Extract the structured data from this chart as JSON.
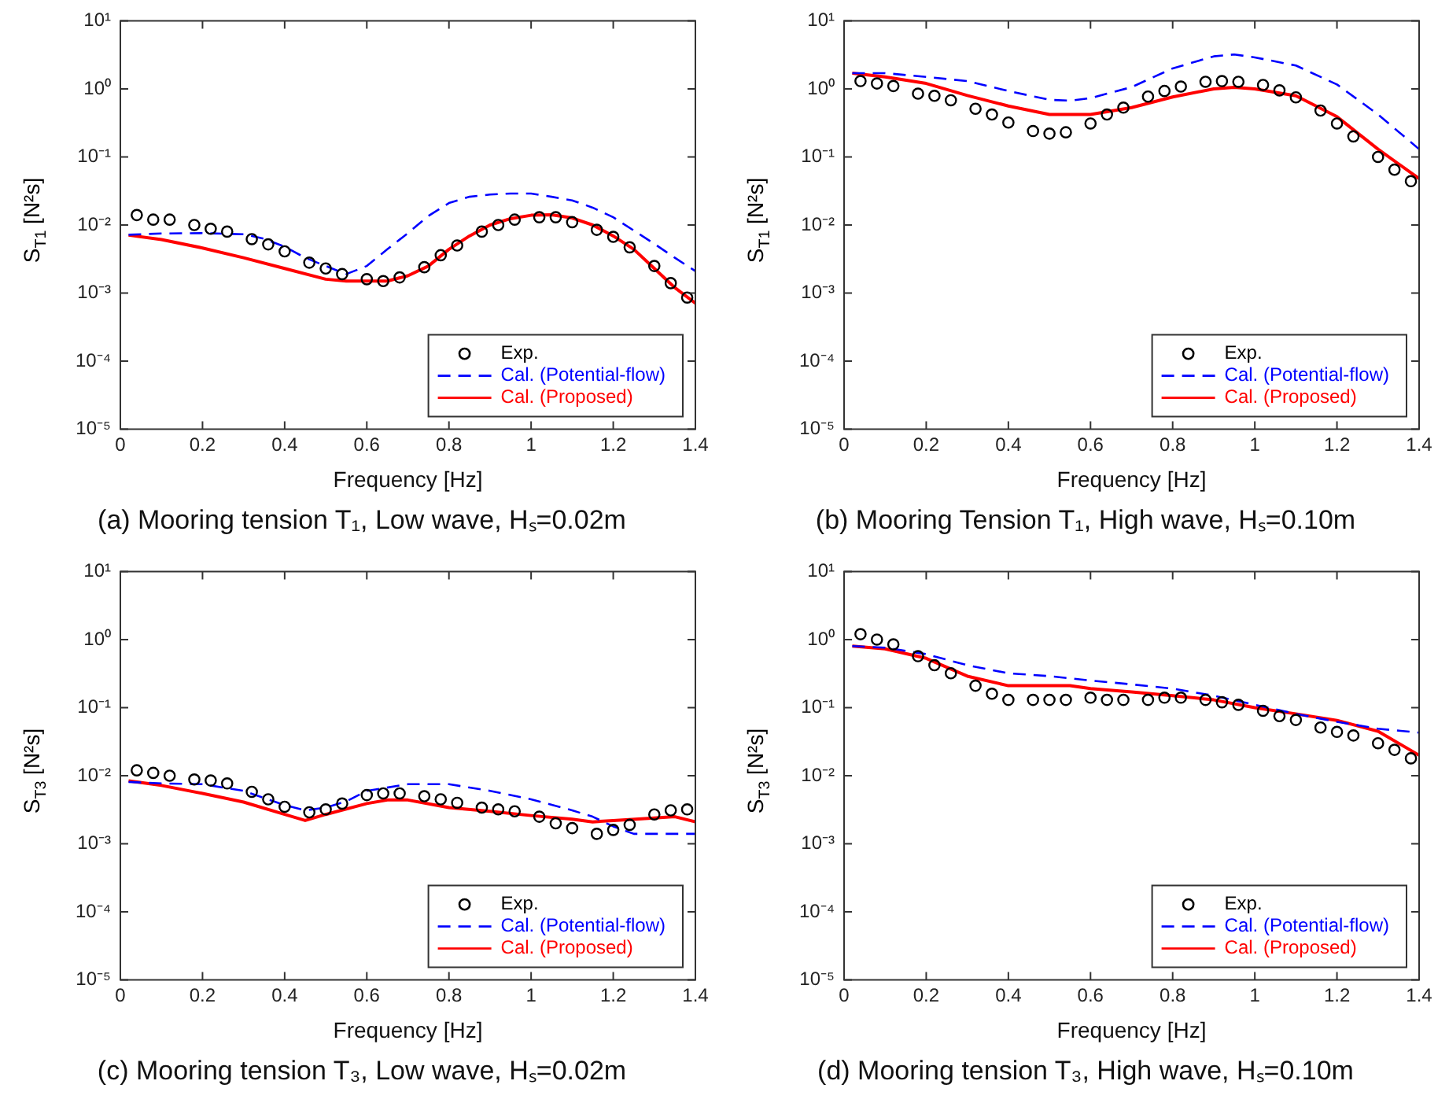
{
  "chart_data": [
    {
      "type": "line",
      "title": "(a) Mooring tension T₁, Low wave, Hₛ=0.02m",
      "xlabel": "Frequency [Hz]",
      "ylabel": "S$_{T1}$ [N²s]",
      "log": "y",
      "legend": "bottom right",
      "xlim": [
        0,
        1.4
      ],
      "xticks": [
        0,
        0.2,
        0.4,
        0.6,
        0.8,
        1,
        1.2,
        1.4
      ],
      "ylim": [
        1e-05,
        10
      ],
      "yticks": [
        {
          "value": 10,
          "label": "10¹"
        },
        {
          "value": 1,
          "label": "10⁰"
        },
        {
          "value": 0.1,
          "label": "10⁻¹"
        },
        {
          "value": 0.01,
          "label": "10⁻²"
        },
        {
          "value": 0.001,
          "label": "10⁻³"
        },
        {
          "value": 0.0001,
          "label": "10⁻⁴"
        },
        {
          "value": 1e-05,
          "label": "10⁻⁵"
        }
      ],
      "series": [
        {
          "name": "Exp.",
          "type": "scatter",
          "marker": "circle",
          "color": "#000000",
          "x": [
            0.04,
            0.08,
            0.12,
            0.18,
            0.22,
            0.26,
            0.32,
            0.36,
            0.4,
            0.46,
            0.5,
            0.54,
            0.6,
            0.64,
            0.68,
            0.74,
            0.78,
            0.82,
            0.88,
            0.92,
            0.96,
            1.02,
            1.06,
            1.1,
            1.16,
            1.2,
            1.24,
            1.3,
            1.34,
            1.38
          ],
          "values": [
            0.014,
            0.012,
            0.012,
            0.01,
            0.0088,
            0.008,
            0.0062,
            0.0052,
            0.0041,
            0.0028,
            0.0023,
            0.0019,
            0.0016,
            0.0015,
            0.0017,
            0.0024,
            0.0036,
            0.005,
            0.008,
            0.01,
            0.012,
            0.013,
            0.013,
            0.011,
            0.0085,
            0.0067,
            0.0047,
            0.0025,
            0.0014,
            0.00086
          ]
        },
        {
          "name": "Cal. (Potential-flow)",
          "type": "line",
          "marker": "none",
          "line_style": "dashed",
          "color": "#0000ff",
          "x": [
            0.02,
            0.1,
            0.2,
            0.3,
            0.35,
            0.4,
            0.45,
            0.5,
            0.55,
            0.6,
            0.65,
            0.7,
            0.75,
            0.8,
            0.85,
            0.9,
            0.95,
            1,
            1.05,
            1.1,
            1.15,
            1.2,
            1.25,
            1.3,
            1.35,
            1.4
          ],
          "values": [
            0.0072,
            0.0075,
            0.0076,
            0.0073,
            0.0063,
            0.0048,
            0.0033,
            0.0025,
            0.0019,
            0.0025,
            0.0044,
            0.0076,
            0.0136,
            0.021,
            0.026,
            0.028,
            0.029,
            0.029,
            0.026,
            0.023,
            0.018,
            0.013,
            0.0083,
            0.0053,
            0.0033,
            0.0021
          ]
        },
        {
          "name": "Cal. (Proposed)",
          "type": "line",
          "marker": "none",
          "line_style": "solid",
          "color": "#ff0000",
          "x": [
            0.02,
            0.1,
            0.2,
            0.3,
            0.4,
            0.5,
            0.55,
            0.65,
            0.7,
            0.75,
            0.8,
            0.85,
            0.9,
            0.95,
            1,
            1.05,
            1.1,
            1.15,
            1.2,
            1.25,
            1.3,
            1.35,
            1.4
          ],
          "values": [
            0.0071,
            0.0061,
            0.0046,
            0.0033,
            0.0023,
            0.0016,
            0.0015,
            0.0015,
            0.0018,
            0.0025,
            0.0044,
            0.0069,
            0.01,
            0.0124,
            0.0139,
            0.0141,
            0.0127,
            0.01,
            0.0069,
            0.0044,
            0.0023,
            0.0012,
            0.00071
          ]
        }
      ]
    },
    {
      "type": "line",
      "title": "(b) Mooring Tension T₁, High wave, Hₛ=0.10m",
      "xlabel": "Frequency [Hz]",
      "ylabel": "S$_{T1}$ [N²s]",
      "log": "y",
      "legend": "bottom right",
      "xlim": [
        0,
        1.4
      ],
      "xticks": [
        0,
        0.2,
        0.4,
        0.6,
        0.8,
        1,
        1.2,
        1.4
      ],
      "ylim": [
        1e-05,
        10
      ],
      "yticks": [
        {
          "value": 10,
          "label": "10¹"
        },
        {
          "value": 1,
          "label": "10⁰"
        },
        {
          "value": 0.1,
          "label": "10⁻¹"
        },
        {
          "value": 0.01,
          "label": "10⁻²"
        },
        {
          "value": 0.001,
          "label": "10⁻³"
        },
        {
          "value": 0.0001,
          "label": "10⁻⁴"
        },
        {
          "value": 1e-05,
          "label": "10⁻⁵"
        }
      ],
      "series": [
        {
          "name": "Exp.",
          "type": "scatter",
          "marker": "circle",
          "color": "#000000",
          "x": [
            0.04,
            0.08,
            0.12,
            0.18,
            0.22,
            0.26,
            0.32,
            0.36,
            0.4,
            0.46,
            0.5,
            0.54,
            0.6,
            0.64,
            0.68,
            0.74,
            0.78,
            0.82,
            0.88,
            0.92,
            0.96,
            1.02,
            1.06,
            1.1,
            1.16,
            1.2,
            1.24,
            1.3,
            1.34,
            1.38
          ],
          "values": [
            1.3,
            1.2,
            1.1,
            0.85,
            0.79,
            0.68,
            0.51,
            0.42,
            0.32,
            0.24,
            0.22,
            0.23,
            0.31,
            0.42,
            0.53,
            0.77,
            0.93,
            1.08,
            1.27,
            1.3,
            1.27,
            1.14,
            0.95,
            0.75,
            0.48,
            0.31,
            0.2,
            0.1,
            0.065,
            0.044
          ]
        },
        {
          "name": "Cal. (Potential-flow)",
          "type": "line",
          "marker": "none",
          "line_style": "dashed",
          "color": "#0000ff",
          "x": [
            0.02,
            0.1,
            0.2,
            0.3,
            0.4,
            0.5,
            0.55,
            0.6,
            0.7,
            0.8,
            0.9,
            0.95,
            1,
            1.1,
            1.2,
            1.3,
            1.4
          ],
          "values": [
            1.7,
            1.7,
            1.5,
            1.3,
            0.93,
            0.69,
            0.67,
            0.73,
            1.06,
            2,
            3,
            3.2,
            2.9,
            2.2,
            1.16,
            0.42,
            0.13
          ]
        },
        {
          "name": "Cal. (Proposed)",
          "type": "line",
          "marker": "none",
          "line_style": "solid",
          "color": "#ff0000",
          "x": [
            0.02,
            0.1,
            0.2,
            0.3,
            0.4,
            0.5,
            0.6,
            0.7,
            0.8,
            0.9,
            0.95,
            1,
            1.1,
            1.2,
            1.3,
            1.4
          ],
          "values": [
            1.7,
            1.5,
            1.2,
            0.8,
            0.56,
            0.42,
            0.42,
            0.53,
            0.76,
            1,
            1.05,
            1,
            0.79,
            0.39,
            0.13,
            0.048
          ]
        }
      ]
    },
    {
      "type": "line",
      "title": "(c) Mooring tension T₃, Low wave, Hₛ=0.02m",
      "xlabel": "Frequency [Hz]",
      "ylabel": "S$_{T3}$ [N²s]",
      "log": "y",
      "legend": "bottom right",
      "xlim": [
        0,
        1.4
      ],
      "xticks": [
        0,
        0.2,
        0.4,
        0.6,
        0.8,
        1,
        1.2,
        1.4
      ],
      "ylim": [
        1e-05,
        10
      ],
      "yticks": [
        {
          "value": 10,
          "label": "10¹"
        },
        {
          "value": 1,
          "label": "10⁰"
        },
        {
          "value": 0.1,
          "label": "10⁻¹"
        },
        {
          "value": 0.01,
          "label": "10⁻²"
        },
        {
          "value": 0.001,
          "label": "10⁻³"
        },
        {
          "value": 0.0001,
          "label": "10⁻⁴"
        },
        {
          "value": 1e-05,
          "label": "10⁻⁵"
        }
      ],
      "series": [
        {
          "name": "Exp.",
          "type": "scatter",
          "marker": "circle",
          "color": "#000000",
          "x": [
            0.04,
            0.08,
            0.12,
            0.18,
            0.22,
            0.26,
            0.32,
            0.36,
            0.4,
            0.46,
            0.5,
            0.54,
            0.6,
            0.64,
            0.68,
            0.74,
            0.78,
            0.82,
            0.88,
            0.92,
            0.96,
            1.02,
            1.06,
            1.1,
            1.16,
            1.2,
            1.24,
            1.3,
            1.34,
            1.38
          ],
          "values": [
            0.012,
            0.011,
            0.01,
            0.0088,
            0.0085,
            0.0077,
            0.0058,
            0.0045,
            0.0035,
            0.0029,
            0.0032,
            0.0039,
            0.0052,
            0.0055,
            0.0055,
            0.005,
            0.0045,
            0.004,
            0.0034,
            0.0032,
            0.003,
            0.0025,
            0.002,
            0.0017,
            0.0014,
            0.0016,
            0.0019,
            0.0027,
            0.0031,
            0.0032
          ]
        },
        {
          "name": "Cal. (Potential-flow)",
          "type": "line",
          "marker": "none",
          "line_style": "dashed",
          "color": "#0000ff",
          "x": [
            0.02,
            0.1,
            0.2,
            0.3,
            0.4,
            0.45,
            0.5,
            0.55,
            0.6,
            0.7,
            0.8,
            0.9,
            1,
            1.1,
            1.15,
            1.2,
            1.25,
            1.3,
            1.4
          ],
          "values": [
            0.0081,
            0.0077,
            0.0075,
            0.006,
            0.0037,
            0.0031,
            0.0034,
            0.0042,
            0.006,
            0.0075,
            0.0075,
            0.006,
            0.0045,
            0.0031,
            0.0025,
            0.0018,
            0.0014,
            0.0014,
            0.0014
          ]
        },
        {
          "name": "Cal. (Proposed)",
          "type": "line",
          "marker": "none",
          "line_style": "solid",
          "color": "#ff0000",
          "x": [
            0.02,
            0.1,
            0.2,
            0.3,
            0.4,
            0.45,
            0.5,
            0.6,
            0.65,
            0.7,
            0.8,
            0.9,
            1,
            1.1,
            1.15,
            1.2,
            1.3,
            1.35,
            1.4
          ],
          "values": [
            0.0084,
            0.0072,
            0.0055,
            0.0041,
            0.0027,
            0.0022,
            0.0027,
            0.0039,
            0.0044,
            0.0044,
            0.0034,
            0.003,
            0.0026,
            0.0023,
            0.0021,
            0.0022,
            0.0024,
            0.0025,
            0.0021
          ]
        }
      ]
    },
    {
      "type": "line",
      "title": "(d) Mooring tension T₃, High wave, Hₛ=0.10m",
      "xlabel": "Frequency [Hz]",
      "ylabel": "S$_{T3}$ [N²s]",
      "log": "y",
      "legend": "bottom right",
      "xlim": [
        0,
        1.4
      ],
      "xticks": [
        0,
        0.2,
        0.4,
        0.6,
        0.8,
        1,
        1.2,
        1.4
      ],
      "ylim": [
        1e-05,
        10
      ],
      "yticks": [
        {
          "value": 10,
          "label": "10¹"
        },
        {
          "value": 1,
          "label": "10⁰"
        },
        {
          "value": 0.1,
          "label": "10⁻¹"
        },
        {
          "value": 0.01,
          "label": "10⁻²"
        },
        {
          "value": 0.001,
          "label": "10⁻³"
        },
        {
          "value": 0.0001,
          "label": "10⁻⁴"
        },
        {
          "value": 1e-05,
          "label": "10⁻⁵"
        }
      ],
      "series": [
        {
          "name": "Exp.",
          "type": "scatter",
          "marker": "circle",
          "color": "#000000",
          "x": [
            0.04,
            0.08,
            0.12,
            0.18,
            0.22,
            0.26,
            0.32,
            0.36,
            0.4,
            0.46,
            0.5,
            0.54,
            0.6,
            0.64,
            0.68,
            0.74,
            0.78,
            0.82,
            0.88,
            0.92,
            0.96,
            1.02,
            1.06,
            1.1,
            1.16,
            1.2,
            1.24,
            1.3,
            1.34,
            1.38
          ],
          "values": [
            1.2,
            1,
            0.85,
            0.57,
            0.42,
            0.32,
            0.21,
            0.16,
            0.13,
            0.13,
            0.13,
            0.13,
            0.14,
            0.13,
            0.13,
            0.13,
            0.14,
            0.14,
            0.13,
            0.12,
            0.11,
            0.09,
            0.075,
            0.066,
            0.051,
            0.044,
            0.039,
            0.03,
            0.024,
            0.018
          ]
        },
        {
          "name": "Cal. (Potential-flow)",
          "type": "line",
          "marker": "none",
          "line_style": "dashed",
          "color": "#0000ff",
          "x": [
            0.02,
            0.1,
            0.2,
            0.3,
            0.4,
            0.5,
            0.6,
            0.7,
            0.8,
            0.9,
            1,
            1.1,
            1.2,
            1.3,
            1.4
          ],
          "values": [
            0.8,
            0.76,
            0.61,
            0.42,
            0.32,
            0.29,
            0.25,
            0.22,
            0.19,
            0.15,
            0.11,
            0.081,
            0.062,
            0.049,
            0.043
          ]
        },
        {
          "name": "Cal. (Proposed)",
          "type": "line",
          "marker": "none",
          "line_style": "solid",
          "color": "#ff0000",
          "x": [
            0.02,
            0.1,
            0.2,
            0.3,
            0.4,
            0.5,
            0.55,
            0.6,
            0.7,
            0.8,
            0.9,
            1,
            1.1,
            1.2,
            1.3,
            1.4
          ],
          "values": [
            0.8,
            0.73,
            0.53,
            0.29,
            0.21,
            0.21,
            0.21,
            0.19,
            0.17,
            0.15,
            0.13,
            0.1,
            0.081,
            0.065,
            0.045,
            0.02
          ]
        }
      ]
    }
  ]
}
